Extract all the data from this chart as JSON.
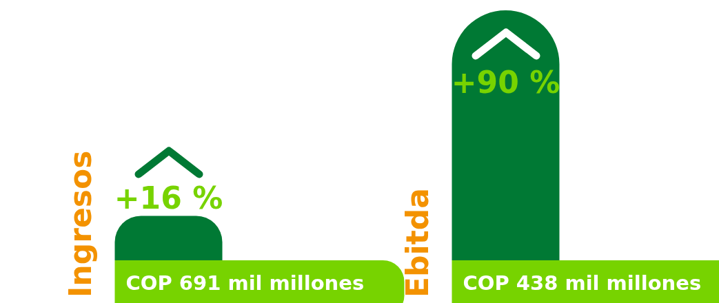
{
  "chart_data": {
    "type": "bar",
    "categories": [
      "Ingresos",
      "Ebitda"
    ],
    "values": [
      16,
      90
    ],
    "color": "#007934",
    "value_labels": [
      "+16 %",
      "+90 %"
    ],
    "annotations": [
      "COP 691 mil millones",
      "COP 438 mil millones"
    ]
  }
}
